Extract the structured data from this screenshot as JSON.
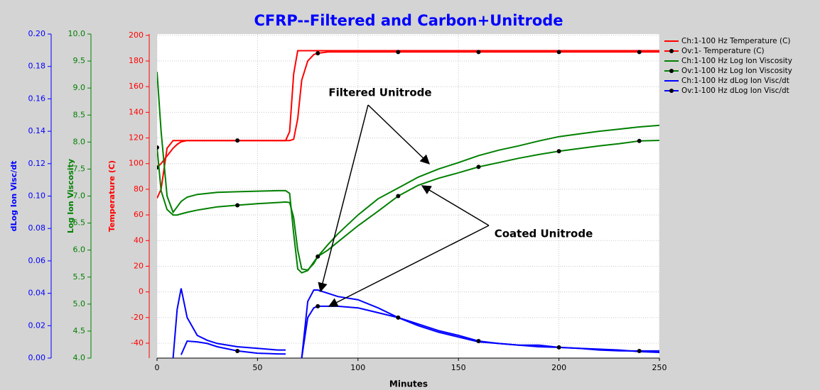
{
  "chart_data": {
    "type": "line",
    "title": "CFRP--Filtered and Carbon+Unitrode",
    "xlabel": "Minutes",
    "ylabel": "Temperature (C)",
    "y2label": "Log Ion Viscosity",
    "y3label": "dLog Ion Visc/dt",
    "xlim": [
      0,
      250
    ],
    "xticks": [
      0,
      50,
      100,
      150,
      200,
      250
    ],
    "ylim": [
      -51.6,
      201
    ],
    "yticks": [
      -40,
      -20,
      0,
      20,
      40,
      60,
      80,
      100,
      120,
      140,
      160,
      180,
      200
    ],
    "y2lim": [
      4,
      10
    ],
    "y2ticks": [
      {
        "value": 4,
        "label": "4.0"
      },
      {
        "value": 4.5,
        "label": "4.5"
      },
      {
        "value": 5,
        "label": "5.0"
      },
      {
        "value": 5.5,
        "label": "5.5"
      },
      {
        "value": 6,
        "label": "6.0"
      },
      {
        "value": 6.5,
        "label": "6.5"
      },
      {
        "value": 7,
        "label": "7.0"
      },
      {
        "value": 7.5,
        "label": "7.5"
      },
      {
        "value": 8,
        "label": "8.0"
      },
      {
        "value": 8.5,
        "label": "8.5"
      },
      {
        "value": 9,
        "label": "9.0"
      },
      {
        "value": 9.5,
        "label": "9.5"
      },
      {
        "value": 10,
        "label": "10.0"
      }
    ],
    "y3lim": [
      0,
      0.2
    ],
    "y3ticks": [
      {
        "value": 0,
        "label": "0.00"
      },
      {
        "value": 0.02,
        "label": "0.02"
      },
      {
        "value": 0.04,
        "label": "0.04"
      },
      {
        "value": 0.06,
        "label": "0.06"
      },
      {
        "value": 0.08,
        "label": "0.08"
      },
      {
        "value": 0.1,
        "label": "0.10"
      },
      {
        "value": 0.12,
        "label": "0.12"
      },
      {
        "value": 0.14,
        "label": "0.14"
      },
      {
        "value": 0.16,
        "label": "0.16"
      },
      {
        "value": 0.18,
        "label": "0.18"
      },
      {
        "value": 0.2,
        "label": "0.20"
      }
    ],
    "grid": true,
    "legend": "right",
    "annotations": [
      "Filtered Unitrode",
      "Coated Unitrode"
    ],
    "x": [
      0,
      2,
      5,
      8,
      10,
      12,
      15,
      20,
      25,
      30,
      40,
      50,
      60,
      64,
      66,
      68,
      70,
      72,
      75,
      78,
      80,
      85,
      90,
      100,
      110,
      120,
      130,
      140,
      150,
      160,
      170,
      180,
      190,
      200,
      210,
      220,
      230,
      240,
      250
    ],
    "series": [
      {
        "name": "Ch:1-100 Hz Temperature (C)",
        "color": "#ff0000",
        "marker": false,
        "values": [
          73,
          80,
          112,
          118,
          118,
          118,
          118,
          118,
          118,
          118,
          118,
          118,
          118,
          118,
          125,
          170,
          188,
          188,
          188,
          188,
          188,
          188,
          188,
          188,
          188,
          188,
          188,
          188,
          188,
          188,
          188,
          188,
          188,
          188,
          188,
          188,
          188,
          188,
          188
        ]
      },
      {
        "name": "Ov:1- Temperature (C)",
        "color": "#ff0000",
        "marker": true,
        "values": [
          97,
          100,
          106,
          112,
          115,
          117,
          118,
          118,
          118,
          118,
          118,
          118,
          118,
          118,
          118,
          119,
          135,
          165,
          180,
          185,
          186,
          187,
          187,
          187,
          187,
          187,
          187,
          187,
          187,
          187,
          187,
          187,
          187,
          187,
          187,
          187,
          187,
          187,
          187
        ]
      },
      {
        "name": "Ch:1-100 Hz Log Ion Viscosity",
        "color": "#008000",
        "marker": false,
        "axis": "y2",
        "values": [
          9.3,
          8.2,
          7.0,
          6.7,
          6.8,
          6.9,
          6.98,
          7.03,
          7.05,
          7.07,
          7.08,
          7.09,
          7.1,
          7.1,
          7.05,
          6.3,
          5.65,
          5.58,
          5.62,
          5.78,
          5.88,
          6.1,
          6.3,
          6.65,
          6.95,
          7.15,
          7.35,
          7.5,
          7.62,
          7.75,
          7.85,
          7.93,
          8.02,
          8.1,
          8.15,
          8.2,
          8.24,
          8.28,
          8.31
        ]
      },
      {
        "name": "Ov:1-100 Hz Log Ion Viscosity",
        "color": "#008000",
        "marker": true,
        "axis": "y2",
        "values": [
          7.9,
          7.1,
          6.75,
          6.65,
          6.65,
          6.67,
          6.7,
          6.74,
          6.77,
          6.8,
          6.83,
          6.86,
          6.88,
          6.89,
          6.88,
          6.6,
          6.0,
          5.65,
          5.63,
          5.75,
          5.88,
          6.0,
          6.15,
          6.45,
          6.72,
          7.0,
          7.2,
          7.33,
          7.43,
          7.54,
          7.62,
          7.7,
          7.77,
          7.83,
          7.88,
          7.93,
          7.97,
          8.02,
          8.03
        ]
      },
      {
        "name": "Ch:1-100 Hz dLog Ion Visc/dt",
        "color": "#0000ff",
        "marker": false,
        "axis": "y3",
        "values": [
          null,
          null,
          null,
          0.0,
          0.03,
          0.043,
          0.025,
          0.014,
          0.011,
          0.009,
          0.007,
          0.006,
          0.005,
          0.005,
          null,
          null,
          null,
          0.0,
          0.035,
          0.042,
          0.042,
          0.04,
          0.038,
          0.036,
          0.031,
          0.025,
          0.02,
          0.016,
          0.013,
          0.01,
          0.009,
          0.008,
          0.008,
          0.0066,
          0.006,
          0.0055,
          0.005,
          0.004,
          0.0035
        ]
      },
      {
        "name": "Ov:1-100 Hz dLog Ion Visc/dt",
        "color": "#0000ff",
        "marker": true,
        "axis": "y3",
        "values": [
          null,
          null,
          null,
          null,
          null,
          0.002,
          0.0105,
          0.01,
          0.009,
          0.007,
          0.0044,
          0.003,
          0.0026,
          0.0025,
          null,
          null,
          null,
          0.0,
          0.025,
          0.031,
          0.032,
          0.032,
          0.032,
          0.031,
          0.028,
          0.025,
          0.021,
          0.017,
          0.014,
          0.0105,
          0.009,
          0.008,
          0.007,
          0.0066,
          0.006,
          0.005,
          0.0045,
          0.0044,
          0.0044
        ]
      }
    ]
  }
}
